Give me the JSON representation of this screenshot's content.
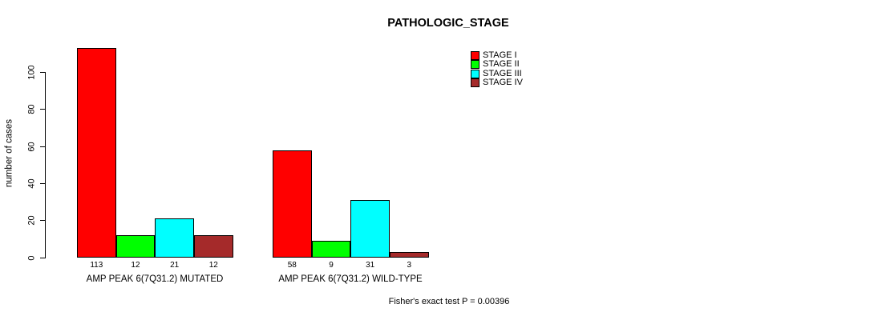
{
  "chart_data": {
    "type": "bar",
    "title": "PATHOLOGIC_STAGE",
    "ylabel": "number of cases",
    "ylim": [
      0,
      113
    ],
    "yticks": [
      0,
      20,
      40,
      60,
      80,
      100
    ],
    "grid": false,
    "legend_position": "right-of-plot-top",
    "bar_value_labels_shown": true,
    "categories": [
      "AMP PEAK 6(7Q31.2) MUTATED",
      "AMP PEAK 6(7Q31.2) WILD-TYPE"
    ],
    "series": [
      {
        "name": "STAGE I",
        "color": "#ff0000",
        "values": [
          113,
          58
        ]
      },
      {
        "name": "STAGE II",
        "color": "#00ff00",
        "values": [
          12,
          9
        ]
      },
      {
        "name": "STAGE III",
        "color": "#00ffff",
        "values": [
          21,
          31
        ]
      },
      {
        "name": "STAGE IV",
        "color": "#a52a2a",
        "values": [
          12,
          3
        ]
      }
    ],
    "annotation": "Fisher's exact test P = 0.00396"
  }
}
